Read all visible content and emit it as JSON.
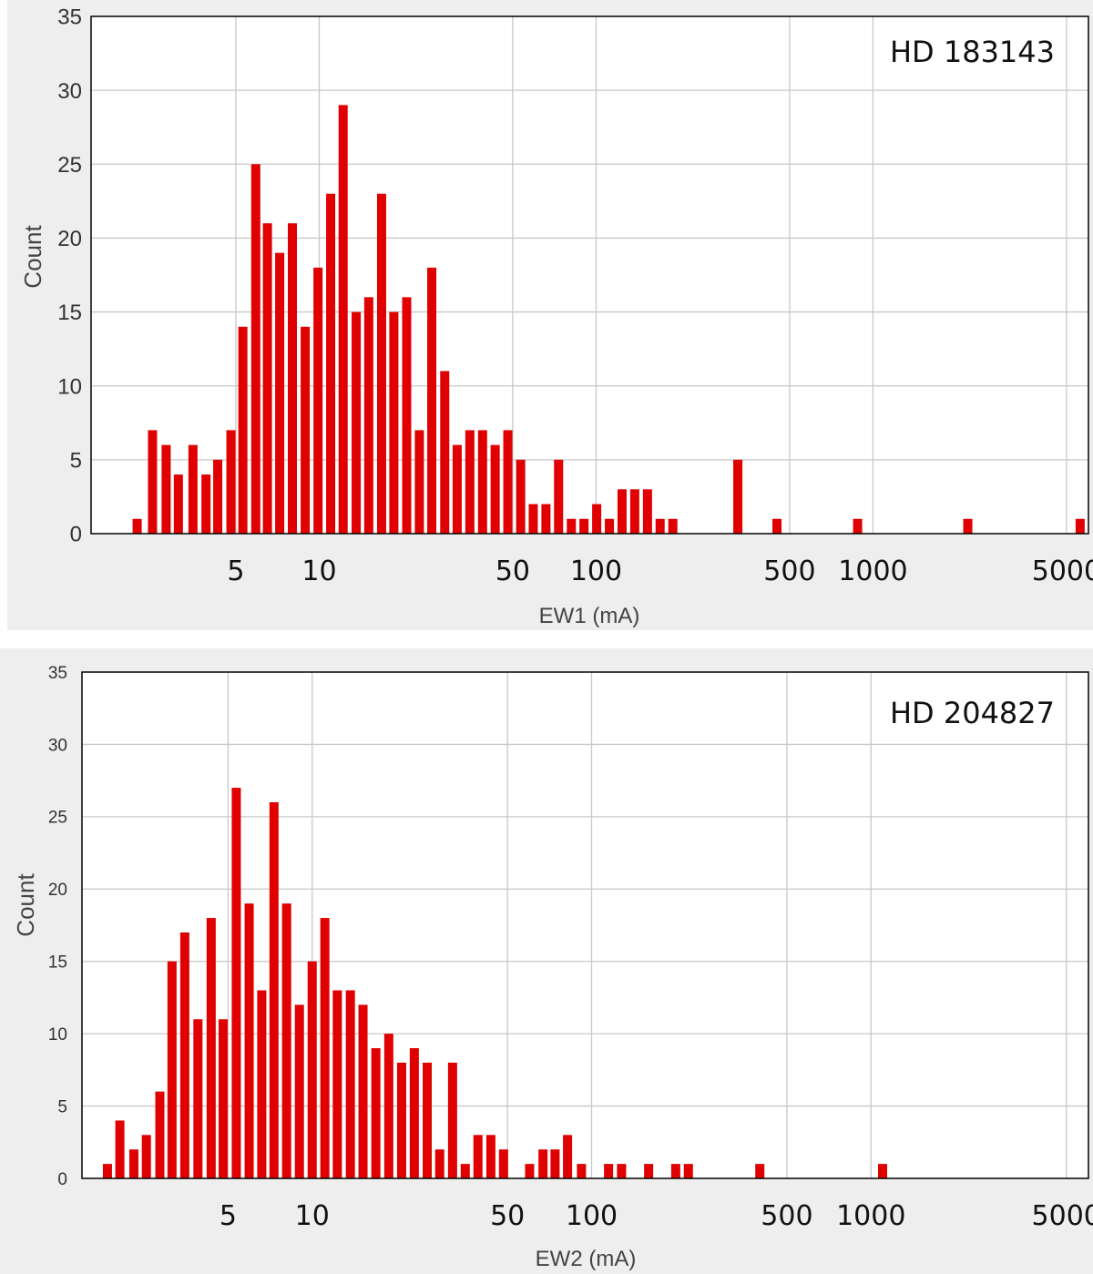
{
  "charts": [
    {
      "type": "bar",
      "title": "",
      "annotation": "HD 183143",
      "xlabel": "EW1 (mA)",
      "ylabel": "Count",
      "x_scale": "log",
      "xlim": [
        1.5,
        6000
      ],
      "ylim": [
        0,
        35
      ],
      "x_ticks": [
        5,
        10,
        50,
        100,
        500,
        1000,
        5000
      ],
      "x_tick_labels": [
        "5",
        "10",
        "50",
        "100",
        "500",
        "1000",
        "5000"
      ],
      "y_ticks": [
        0,
        5,
        10,
        15,
        20,
        25,
        30,
        35
      ],
      "y_tick_labels": [
        "0",
        "5",
        "10",
        "15",
        "20",
        "25",
        "30",
        "35"
      ],
      "grid": true,
      "bar_color": "#e00000",
      "bins": [
        {
          "x": 2.2,
          "count": 1
        },
        {
          "x": 2.5,
          "count": 7
        },
        {
          "x": 2.8,
          "count": 6
        },
        {
          "x": 3.1,
          "count": 4
        },
        {
          "x": 3.5,
          "count": 6
        },
        {
          "x": 3.9,
          "count": 4
        },
        {
          "x": 4.3,
          "count": 5
        },
        {
          "x": 4.8,
          "count": 7
        },
        {
          "x": 5.3,
          "count": 14
        },
        {
          "x": 5.9,
          "count": 25
        },
        {
          "x": 6.5,
          "count": 21
        },
        {
          "x": 7.2,
          "count": 19
        },
        {
          "x": 8.0,
          "count": 21
        },
        {
          "x": 8.9,
          "count": 14
        },
        {
          "x": 9.9,
          "count": 18
        },
        {
          "x": 11.0,
          "count": 23
        },
        {
          "x": 12.2,
          "count": 29
        },
        {
          "x": 13.6,
          "count": 15
        },
        {
          "x": 15.1,
          "count": 16
        },
        {
          "x": 16.8,
          "count": 23
        },
        {
          "x": 18.6,
          "count": 15
        },
        {
          "x": 20.7,
          "count": 16
        },
        {
          "x": 23.0,
          "count": 7
        },
        {
          "x": 25.5,
          "count": 18
        },
        {
          "x": 28.4,
          "count": 11
        },
        {
          "x": 31.5,
          "count": 6
        },
        {
          "x": 35.0,
          "count": 7
        },
        {
          "x": 38.9,
          "count": 7
        },
        {
          "x": 43.2,
          "count": 6
        },
        {
          "x": 48.0,
          "count": 7
        },
        {
          "x": 53.4,
          "count": 5
        },
        {
          "x": 59.3,
          "count": 2
        },
        {
          "x": 65.9,
          "count": 2
        },
        {
          "x": 73.2,
          "count": 5
        },
        {
          "x": 81.4,
          "count": 1
        },
        {
          "x": 90.4,
          "count": 1
        },
        {
          "x": 100.5,
          "count": 2
        },
        {
          "x": 111.7,
          "count": 1
        },
        {
          "x": 124.1,
          "count": 3
        },
        {
          "x": 137.9,
          "count": 3
        },
        {
          "x": 153.3,
          "count": 3
        },
        {
          "x": 170.3,
          "count": 1
        },
        {
          "x": 189.3,
          "count": 1
        },
        {
          "x": 325,
          "count": 5
        },
        {
          "x": 450,
          "count": 1
        },
        {
          "x": 880,
          "count": 1
        },
        {
          "x": 2200,
          "count": 1
        },
        {
          "x": 5600,
          "count": 1
        }
      ]
    },
    {
      "type": "bar",
      "title": "",
      "annotation": "HD 204827",
      "xlabel": "EW2 (mA)",
      "ylabel": "Count",
      "x_scale": "log",
      "xlim": [
        1.5,
        6000
      ],
      "ylim": [
        0,
        35
      ],
      "x_ticks": [
        5,
        10,
        50,
        100,
        500,
        1000,
        5000
      ],
      "x_tick_labels": [
        "5",
        "10",
        "50",
        "100",
        "500",
        "1000",
        "5000"
      ],
      "y_ticks": [
        0,
        5,
        10,
        15,
        20,
        25,
        30,
        35
      ],
      "y_tick_labels": [
        "0",
        "5",
        "10",
        "15",
        "20",
        "25",
        "30",
        "35"
      ],
      "grid": true,
      "bar_color": "#e00000",
      "bins": [
        {
          "x": 1.85,
          "count": 1
        },
        {
          "x": 2.05,
          "count": 4
        },
        {
          "x": 2.3,
          "count": 2
        },
        {
          "x": 2.55,
          "count": 3
        },
        {
          "x": 2.85,
          "count": 6
        },
        {
          "x": 3.15,
          "count": 15
        },
        {
          "x": 3.5,
          "count": 17
        },
        {
          "x": 3.9,
          "count": 11
        },
        {
          "x": 4.35,
          "count": 18
        },
        {
          "x": 4.8,
          "count": 11
        },
        {
          "x": 5.35,
          "count": 27
        },
        {
          "x": 5.95,
          "count": 19
        },
        {
          "x": 6.6,
          "count": 13
        },
        {
          "x": 7.3,
          "count": 26
        },
        {
          "x": 8.1,
          "count": 19
        },
        {
          "x": 9.0,
          "count": 12
        },
        {
          "x": 10.0,
          "count": 15
        },
        {
          "x": 11.1,
          "count": 18
        },
        {
          "x": 12.3,
          "count": 13
        },
        {
          "x": 13.7,
          "count": 13
        },
        {
          "x": 15.2,
          "count": 12
        },
        {
          "x": 16.9,
          "count": 9
        },
        {
          "x": 18.8,
          "count": 10
        },
        {
          "x": 20.9,
          "count": 8
        },
        {
          "x": 23.2,
          "count": 9
        },
        {
          "x": 25.8,
          "count": 8
        },
        {
          "x": 28.6,
          "count": 2
        },
        {
          "x": 31.8,
          "count": 8
        },
        {
          "x": 35.3,
          "count": 1
        },
        {
          "x": 39.2,
          "count": 3
        },
        {
          "x": 43.6,
          "count": 3
        },
        {
          "x": 48.4,
          "count": 2
        },
        {
          "x": 60,
          "count": 1
        },
        {
          "x": 67,
          "count": 2
        },
        {
          "x": 74,
          "count": 2
        },
        {
          "x": 82,
          "count": 3
        },
        {
          "x": 92,
          "count": 1
        },
        {
          "x": 115,
          "count": 1
        },
        {
          "x": 128,
          "count": 1
        },
        {
          "x": 160,
          "count": 1
        },
        {
          "x": 200,
          "count": 1
        },
        {
          "x": 222,
          "count": 1
        },
        {
          "x": 400,
          "count": 1
        },
        {
          "x": 1100,
          "count": 1
        }
      ]
    }
  ]
}
